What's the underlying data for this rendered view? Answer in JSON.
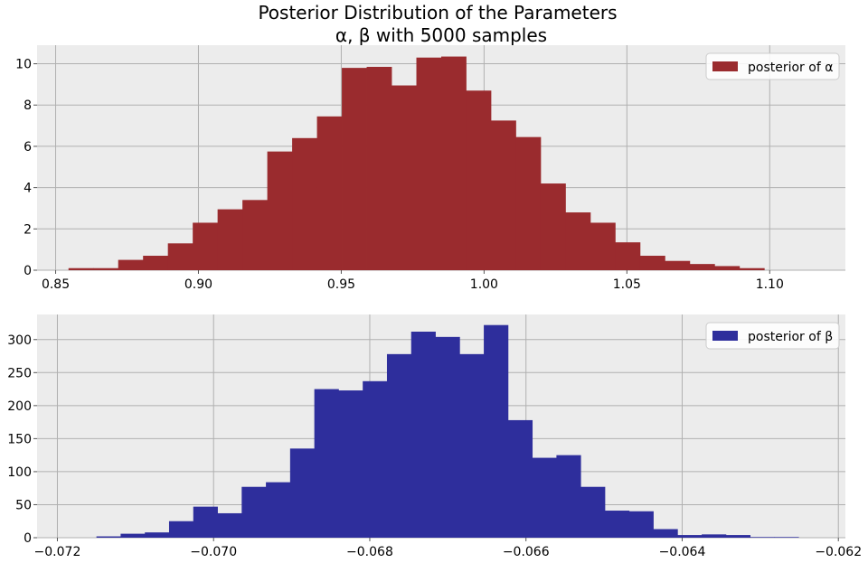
{
  "figure": {
    "title_line1": "Posterior Distribution of the Parameters",
    "title_line2": "α, β with 5000 samples"
  },
  "colors": {
    "alpha_hist": "#9a2b2e",
    "beta_hist": "#2e2e9c",
    "axes_bg": "#ececec",
    "grid": "#b0b0b0"
  },
  "chart_data": [
    {
      "type": "bar",
      "histogram": true,
      "legend": {
        "label": "posterior of α",
        "position": "top-right"
      },
      "xlim": [
        0.8435,
        1.1265
      ],
      "ylim": [
        0,
        10.9
      ],
      "xticks": [
        0.85,
        0.9,
        0.95,
        1.0,
        1.05,
        1.1
      ],
      "xtick_labels": [
        "0.85",
        "0.90",
        "0.95",
        "1.00",
        "1.05",
        "1.10"
      ],
      "yticks": [
        0,
        2,
        4,
        6,
        8,
        10
      ],
      "ytick_labels": [
        "0",
        "2",
        "4",
        "6",
        "8",
        "10"
      ],
      "grid": true,
      "bin_edges": [
        0.8545,
        0.8632,
        0.8719,
        0.8806,
        0.8893,
        0.898,
        0.9067,
        0.9154,
        0.9241,
        0.9328,
        0.9415,
        0.9502,
        0.9589,
        0.9676,
        0.9763,
        0.985,
        0.9937,
        1.0024,
        1.0111,
        1.0198,
        1.0285,
        1.0372,
        1.0459,
        1.0546,
        1.0633,
        1.072,
        1.0807,
        1.0894,
        1.0981
      ],
      "values": [
        0.1,
        0.1,
        0.5,
        0.7,
        1.3,
        2.3,
        2.95,
        3.4,
        5.75,
        6.4,
        7.45,
        9.8,
        9.85,
        8.95,
        10.3,
        10.35,
        8.7,
        7.25,
        6.45,
        4.2,
        2.8,
        2.3,
        1.35,
        0.7,
        0.45,
        0.3,
        0.2,
        0.1
      ]
    },
    {
      "type": "bar",
      "histogram": true,
      "legend": {
        "label": "posterior of β",
        "position": "top-right"
      },
      "xlim": [
        -0.07226,
        -0.06191
      ],
      "ylim": [
        0,
        338
      ],
      "xticks": [
        -0.072,
        -0.07,
        -0.068,
        -0.066,
        -0.064,
        -0.062
      ],
      "xtick_labels": [
        "−0.072",
        "−0.070",
        "−0.068",
        "−0.066",
        "−0.064",
        "−0.062"
      ],
      "yticks": [
        0,
        50,
        100,
        150,
        200,
        250,
        300
      ],
      "ytick_labels": [
        "0",
        "50",
        "100",
        "150",
        "200",
        "250",
        "300"
      ],
      "grid": true,
      "bin_edges": [
        -0.0715,
        -0.07119,
        -0.07088,
        -0.07057,
        -0.07026,
        -0.06995,
        -0.06964,
        -0.06933,
        -0.06902,
        -0.06871,
        -0.0684,
        -0.06809,
        -0.06778,
        -0.06747,
        -0.06716,
        -0.06685,
        -0.06654,
        -0.06623,
        -0.06592,
        -0.06561,
        -0.0653,
        -0.06499,
        -0.06468,
        -0.06437,
        -0.06406,
        -0.06375,
        -0.06344,
        -0.06313,
        -0.06282,
        -0.06251
      ],
      "values": [
        2,
        6,
        8,
        25,
        47,
        37,
        77,
        84,
        135,
        225,
        223,
        237,
        278,
        312,
        304,
        278,
        322,
        178,
        121,
        125,
        77,
        41,
        40,
        13,
        4,
        5,
        4,
        1,
        1
      ]
    }
  ]
}
